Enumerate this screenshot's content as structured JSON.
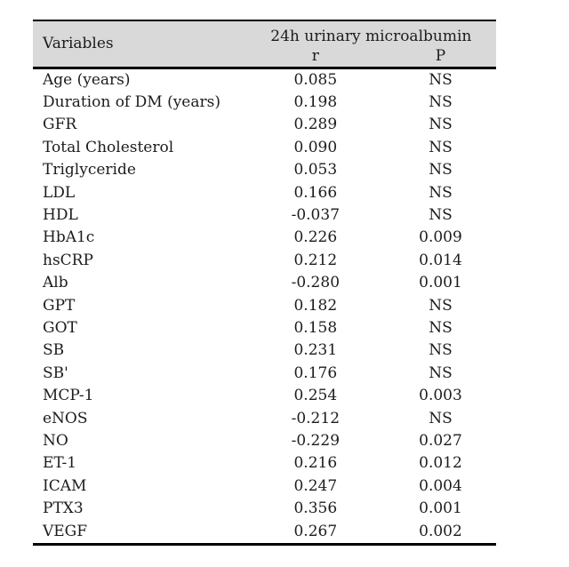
{
  "colors": {
    "page_bg": "#ffffff",
    "header_bg": "#d9d9d9",
    "border": "#000000",
    "text": "#1c1c1c"
  },
  "table": {
    "variables_header": "Variables",
    "group_header": "24h urinary microalbumin",
    "sub_headers": [
      "r",
      "P"
    ],
    "rows": [
      {
        "variable": "Age (years)",
        "r": "0.085",
        "p": "NS"
      },
      {
        "variable": "Duration of DM (years)",
        "r": "0.198",
        "p": "NS"
      },
      {
        "variable": "GFR",
        "r": "0.289",
        "p": "NS"
      },
      {
        "variable": "Total Cholesterol",
        "r": "0.090",
        "p": "NS"
      },
      {
        "variable": "Triglyceride",
        "r": "0.053",
        "p": "NS"
      },
      {
        "variable": "LDL",
        "r": "0.166",
        "p": "NS"
      },
      {
        "variable": "HDL",
        "r": "-0.037",
        "p": "NS"
      },
      {
        "variable": "HbA1c",
        "r": "0.226",
        "p": "0.009"
      },
      {
        "variable": "hsCRP",
        "r": "0.212",
        "p": "0.014"
      },
      {
        "variable": "Alb",
        "r": "-0.280",
        "p": "0.001"
      },
      {
        "variable": "GPT",
        "r": "0.182",
        "p": "NS"
      },
      {
        "variable": "GOT",
        "r": "0.158",
        "p": "NS"
      },
      {
        "variable": "SB",
        "r": "0.231",
        "p": "NS"
      },
      {
        "variable": "SB'",
        "r": "0.176",
        "p": "NS"
      },
      {
        "variable": "MCP-1",
        "r": "0.254",
        "p": "0.003"
      },
      {
        "variable": "eNOS",
        "r": "-0.212",
        "p": "NS"
      },
      {
        "variable": "NO",
        "r": "-0.229",
        "p": "0.027"
      },
      {
        "variable": "ET-1",
        "r": "0.216",
        "p": "0.012"
      },
      {
        "variable": "ICAM",
        "r": "0.247",
        "p": "0.004"
      },
      {
        "variable": "PTX3",
        "r": "0.356",
        "p": "0.001"
      },
      {
        "variable": "VEGF",
        "r": "0.267",
        "p": "0.002"
      }
    ]
  }
}
